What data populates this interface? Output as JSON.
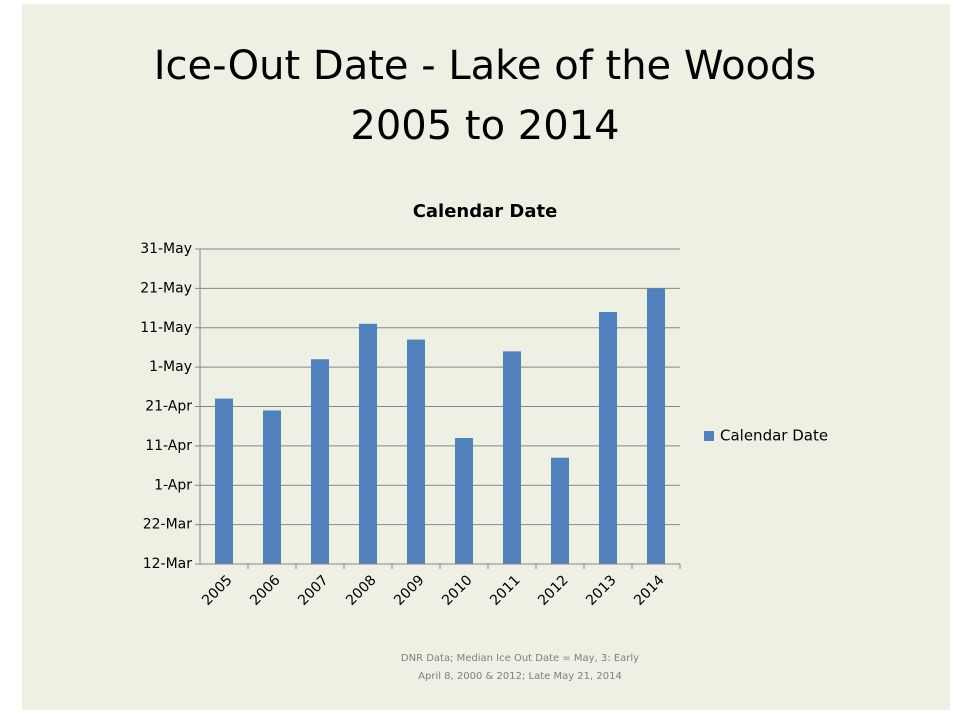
{
  "chart_data": {
    "type": "bar",
    "title": "Ice-Out Date - Lake of the Woods",
    "subtitle": "2005 to 2014",
    "chart_title": "Calendar Date",
    "categories": [
      "2005",
      "2006",
      "2007",
      "2008",
      "2009",
      "2010",
      "2011",
      "2012",
      "2013",
      "2014"
    ],
    "series": [
      {
        "name": "Calendar Date",
        "color": "#4f81bd",
        "values": [
          113,
          110,
          123,
          132,
          128,
          103,
          125,
          98,
          135,
          141
        ]
      }
    ],
    "ylim": [
      71,
      151
    ],
    "yticks": [
      {
        "value": 71,
        "label": "12-Mar"
      },
      {
        "value": 81,
        "label": "22-Mar"
      },
      {
        "value": 91,
        "label": "1-Apr"
      },
      {
        "value": 101,
        "label": "11-Apr"
      },
      {
        "value": 111,
        "label": "21-Apr"
      },
      {
        "value": 121,
        "label": "1-May"
      },
      {
        "value": 131,
        "label": "11-May"
      },
      {
        "value": 141,
        "label": "21-May"
      },
      {
        "value": 151,
        "label": "31-May"
      }
    ],
    "grid": true,
    "legend": "right",
    "annotations": [
      "DNR Data; Median Ice Out Date = May, 3: Early",
      "April 8, 2000 & 2012; Late May 21, 2014"
    ]
  }
}
